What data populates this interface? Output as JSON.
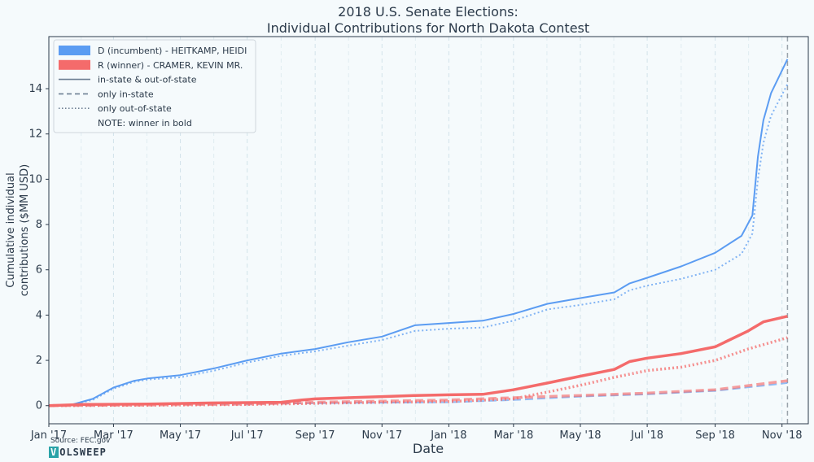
{
  "chart_data": {
    "type": "line",
    "title": [
      "2018 U.S. Senate Elections:",
      "Individual Contributions for North Dakota Contest"
    ],
    "xlabel": "Date",
    "ylabel": [
      "Cumulative individual",
      "contributions ($MM USD)"
    ],
    "x_range": [
      "2017-01-01",
      "2018-11-25"
    ],
    "ylim": [
      -0.8,
      16.3
    ],
    "yticks": [
      0,
      2,
      4,
      6,
      8,
      10,
      12,
      14
    ],
    "xticks": [
      {
        "date": "2017-01-01",
        "label": "Jan '17"
      },
      {
        "date": "2017-03-01",
        "label": "Mar '17"
      },
      {
        "date": "2017-05-01",
        "label": "May '17"
      },
      {
        "date": "2017-07-01",
        "label": "Jul '17"
      },
      {
        "date": "2017-09-01",
        "label": "Sep '17"
      },
      {
        "date": "2017-11-01",
        "label": "Nov '17"
      },
      {
        "date": "2018-01-01",
        "label": "Jan '18"
      },
      {
        "date": "2018-03-01",
        "label": "Mar '18"
      },
      {
        "date": "2018-05-01",
        "label": "May '18"
      },
      {
        "date": "2018-07-01",
        "label": "Jul '18"
      },
      {
        "date": "2018-09-01",
        "label": "Sep '18"
      },
      {
        "date": "2018-11-01",
        "label": "Nov '18"
      }
    ],
    "vertical_line": "2018-11-06",
    "grid": "vertical dashed",
    "legend_placement": "top-left",
    "legend": [
      {
        "label": "D (incumbent) - HEITKAMP, HEIDI",
        "kind": "patch",
        "color": "#5b9cf2"
      },
      {
        "label": "R (winner) - CRAMER, KEVIN MR.",
        "kind": "patch",
        "color": "#f46b6b"
      },
      {
        "label": "in-state & out-of-state",
        "kind": "solid"
      },
      {
        "label": "only in-state",
        "kind": "dashed"
      },
      {
        "label": "only out-of-state",
        "kind": "dotted"
      },
      {
        "label": "NOTE: winner in bold",
        "kind": "none"
      }
    ],
    "series": [
      {
        "party": "D",
        "scope": "total",
        "style": "solid",
        "color": "#5b9cf2",
        "bold": false,
        "x": [
          "2017-01-01",
          "2017-01-20",
          "2017-02-10",
          "2017-03-01",
          "2017-03-20",
          "2017-04-01",
          "2017-05-01",
          "2017-06-01",
          "2017-07-01",
          "2017-08-01",
          "2017-09-01",
          "2017-10-01",
          "2017-11-01",
          "2017-12-01",
          "2018-01-01",
          "2018-02-01",
          "2018-03-01",
          "2018-04-01",
          "2018-05-01",
          "2018-06-01",
          "2018-06-15",
          "2018-07-01",
          "2018-08-01",
          "2018-09-01",
          "2018-09-25",
          "2018-10-05",
          "2018-10-10",
          "2018-10-15",
          "2018-10-22",
          "2018-11-06"
        ],
        "y": [
          0,
          0.02,
          0.3,
          0.8,
          1.1,
          1.2,
          1.35,
          1.65,
          2.0,
          2.3,
          2.5,
          2.8,
          3.05,
          3.55,
          3.65,
          3.75,
          4.05,
          4.5,
          4.75,
          5.0,
          5.4,
          5.65,
          6.15,
          6.75,
          7.5,
          8.4,
          11.0,
          12.6,
          13.8,
          15.3
        ]
      },
      {
        "party": "D",
        "scope": "out-of-state",
        "style": "dotted",
        "color": "#5b9cf2",
        "bold": false,
        "x": [
          "2017-01-01",
          "2017-01-20",
          "2017-02-10",
          "2017-03-01",
          "2017-03-20",
          "2017-04-01",
          "2017-05-01",
          "2017-06-01",
          "2017-07-01",
          "2017-08-01",
          "2017-09-01",
          "2017-10-01",
          "2017-11-01",
          "2017-12-01",
          "2018-01-01",
          "2018-02-01",
          "2018-03-01",
          "2018-04-01",
          "2018-05-01",
          "2018-06-01",
          "2018-06-15",
          "2018-07-01",
          "2018-08-01",
          "2018-09-01",
          "2018-09-25",
          "2018-10-05",
          "2018-10-10",
          "2018-10-15",
          "2018-10-22",
          "2018-11-06"
        ],
        "y": [
          0,
          0.02,
          0.25,
          0.75,
          1.05,
          1.15,
          1.25,
          1.55,
          1.9,
          2.2,
          2.4,
          2.65,
          2.9,
          3.3,
          3.4,
          3.45,
          3.75,
          4.25,
          4.45,
          4.7,
          5.1,
          5.3,
          5.6,
          6.0,
          6.7,
          7.6,
          10.0,
          11.6,
          12.8,
          14.2
        ]
      },
      {
        "party": "D",
        "scope": "in-state",
        "style": "dashed",
        "color": "#5b9cf2",
        "bold": false,
        "x": [
          "2017-01-01",
          "2017-04-01",
          "2017-07-01",
          "2017-10-01",
          "2018-01-01",
          "2018-03-01",
          "2018-05-01",
          "2018-07-01",
          "2018-09-01",
          "2018-11-06"
        ],
        "y": [
          0,
          0.05,
          0.08,
          0.12,
          0.15,
          0.25,
          0.4,
          0.5,
          0.65,
          1.0
        ]
      },
      {
        "party": "R",
        "scope": "total",
        "style": "solid",
        "color": "#f46b6b",
        "bold": true,
        "x": [
          "2017-01-01",
          "2017-02-01",
          "2017-04-01",
          "2017-06-01",
          "2017-08-01",
          "2017-08-20",
          "2017-09-01",
          "2017-10-01",
          "2017-11-01",
          "2017-12-01",
          "2018-01-01",
          "2018-02-01",
          "2018-03-01",
          "2018-04-01",
          "2018-05-01",
          "2018-06-01",
          "2018-06-15",
          "2018-07-01",
          "2018-08-01",
          "2018-09-01",
          "2018-10-01",
          "2018-10-15",
          "2018-11-06"
        ],
        "y": [
          0,
          0.05,
          0.07,
          0.12,
          0.15,
          0.25,
          0.3,
          0.35,
          0.4,
          0.45,
          0.48,
          0.5,
          0.7,
          1.0,
          1.3,
          1.6,
          1.95,
          2.1,
          2.3,
          2.6,
          3.3,
          3.7,
          3.95
        ]
      },
      {
        "party": "R",
        "scope": "out-of-state",
        "style": "dotted",
        "color": "#f46b6b",
        "bold": true,
        "x": [
          "2017-01-01",
          "2017-04-01",
          "2017-07-01",
          "2017-09-01",
          "2017-11-01",
          "2018-01-01",
          "2018-03-01",
          "2018-04-01",
          "2018-05-01",
          "2018-06-01",
          "2018-07-01",
          "2018-08-01",
          "2018-09-01",
          "2018-10-01",
          "2018-11-06"
        ],
        "y": [
          0,
          0.02,
          0.05,
          0.1,
          0.15,
          0.18,
          0.3,
          0.6,
          0.9,
          1.25,
          1.55,
          1.7,
          2.0,
          2.5,
          3.0
        ]
      },
      {
        "party": "R",
        "scope": "in-state",
        "style": "dashed",
        "color": "#f46b6b",
        "bold": true,
        "x": [
          "2017-01-01",
          "2017-04-01",
          "2017-07-01",
          "2017-09-01",
          "2017-11-01",
          "2018-01-01",
          "2018-03-01",
          "2018-05-01",
          "2018-07-01",
          "2018-09-01",
          "2018-11-06"
        ],
        "y": [
          0,
          0.03,
          0.07,
          0.15,
          0.2,
          0.25,
          0.35,
          0.45,
          0.55,
          0.7,
          1.1
        ]
      }
    ]
  },
  "footer": {
    "source": "Source: FEC.gov",
    "logo_first": "V",
    "logo_rest": "OLSWEEP"
  }
}
